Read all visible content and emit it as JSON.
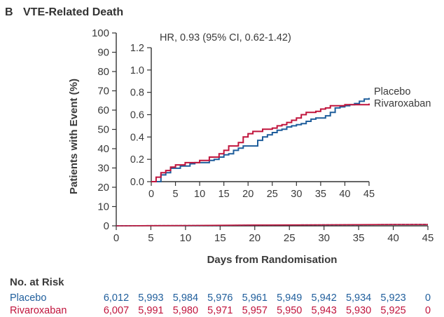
{
  "panel": {
    "letter": "B",
    "title": "VTE-Related Death"
  },
  "colors": {
    "placebo": "#1f5e9c",
    "rivaroxaban": "#c0143c",
    "axis": "#333333",
    "text": "#3a3a3a"
  },
  "chart_data": [
    {
      "type": "line",
      "id": "main",
      "xlabel": "Days from Randomisation",
      "ylabel": "Patients with Event (%)",
      "xlim": [
        0,
        45
      ],
      "ylim": [
        0,
        100
      ],
      "xticks": [
        0,
        5,
        10,
        15,
        20,
        25,
        30,
        35,
        40,
        45
      ],
      "yticks": [
        0,
        10,
        20,
        30,
        40,
        50,
        60,
        70,
        80,
        90,
        100
      ],
      "grid": false,
      "series": [
        {
          "name": "Placebo",
          "color": "#1f5e9c",
          "x": [
            0,
            5,
            10,
            15,
            20,
            25,
            30,
            35,
            40,
            45
          ],
          "y": [
            0,
            0.1,
            0.16,
            0.22,
            0.35,
            0.45,
            0.52,
            0.6,
            0.7,
            0.75
          ]
        },
        {
          "name": "Rivaroxaban",
          "color": "#c0143c",
          "x": [
            0,
            5,
            10,
            15,
            20,
            25,
            30,
            35,
            40,
            45
          ],
          "y": [
            0,
            0.12,
            0.18,
            0.3,
            0.45,
            0.48,
            0.55,
            0.62,
            0.68,
            0.7
          ]
        }
      ]
    },
    {
      "type": "line",
      "id": "inset",
      "annotation": "HR, 0.93 (95% CI, 0.62-1.42)",
      "xlim": [
        0,
        45
      ],
      "ylim": [
        0,
        1.2
      ],
      "xticks": [
        0,
        5,
        10,
        15,
        20,
        25,
        30,
        35,
        40,
        45
      ],
      "yticks": [
        "0.0",
        "0.2",
        "0.4",
        "0.6",
        "0.8",
        "1.0",
        "1.2"
      ],
      "grid": false,
      "legend": "right",
      "series": [
        {
          "name": "Placebo",
          "color": "#1f5e9c",
          "steps": [
            [
              0,
              0
            ],
            [
              2,
              0.06
            ],
            [
              3,
              0.08
            ],
            [
              4,
              0.12
            ],
            [
              6,
              0.14
            ],
            [
              8,
              0.16
            ],
            [
              9,
              0.17
            ],
            [
              11,
              0.17
            ],
            [
              12,
              0.19
            ],
            [
              13,
              0.2
            ],
            [
              14,
              0.22
            ],
            [
              15,
              0.24
            ],
            [
              16,
              0.25
            ],
            [
              17,
              0.28
            ],
            [
              18,
              0.3
            ],
            [
              19,
              0.32
            ],
            [
              22,
              0.37
            ],
            [
              23,
              0.4
            ],
            [
              24,
              0.42
            ],
            [
              25,
              0.44
            ],
            [
              26,
              0.46
            ],
            [
              27,
              0.47
            ],
            [
              28,
              0.49
            ],
            [
              29,
              0.5
            ],
            [
              30,
              0.51
            ],
            [
              31,
              0.52
            ],
            [
              32,
              0.54
            ],
            [
              33,
              0.56
            ],
            [
              34,
              0.57
            ],
            [
              36,
              0.59
            ],
            [
              37,
              0.62
            ],
            [
              38,
              0.66
            ],
            [
              39,
              0.67
            ],
            [
              40,
              0.68
            ],
            [
              41,
              0.69
            ],
            [
              42,
              0.7
            ],
            [
              43,
              0.72
            ],
            [
              44,
              0.74
            ],
            [
              45,
              0.75
            ]
          ]
        },
        {
          "name": "Rivaroxaban",
          "color": "#c0143c",
          "steps": [
            [
              0,
              0
            ],
            [
              1,
              0.04
            ],
            [
              2,
              0.08
            ],
            [
              3,
              0.1
            ],
            [
              4,
              0.13
            ],
            [
              5,
              0.15
            ],
            [
              7,
              0.17
            ],
            [
              10,
              0.19
            ],
            [
              12,
              0.22
            ],
            [
              14,
              0.25
            ],
            [
              15,
              0.28
            ],
            [
              16,
              0.32
            ],
            [
              18,
              0.35
            ],
            [
              19,
              0.4
            ],
            [
              20,
              0.43
            ],
            [
              21,
              0.45
            ],
            [
              23,
              0.47
            ],
            [
              25,
              0.48
            ],
            [
              26,
              0.5
            ],
            [
              27,
              0.51
            ],
            [
              28,
              0.53
            ],
            [
              29,
              0.55
            ],
            [
              30,
              0.57
            ],
            [
              31,
              0.6
            ],
            [
              32,
              0.62
            ],
            [
              34,
              0.63
            ],
            [
              35,
              0.65
            ],
            [
              36,
              0.66
            ],
            [
              37,
              0.68
            ],
            [
              40,
              0.69
            ],
            [
              45,
              0.7
            ]
          ]
        }
      ]
    }
  ],
  "risk_table": {
    "title": "No. at Risk",
    "rows": [
      {
        "name": "Placebo",
        "color": "#1f5e9c",
        "values": [
          "6,012",
          "5,993",
          "5,984",
          "5,976",
          "5,961",
          "5,949",
          "5,942",
          "5,934",
          "5,923",
          "0"
        ]
      },
      {
        "name": "Rivaroxaban",
        "color": "#c0143c",
        "values": [
          "6,007",
          "5,991",
          "5,980",
          "5,971",
          "5,957",
          "5,950",
          "5,943",
          "5,930",
          "5,925",
          "0"
        ]
      }
    ]
  }
}
